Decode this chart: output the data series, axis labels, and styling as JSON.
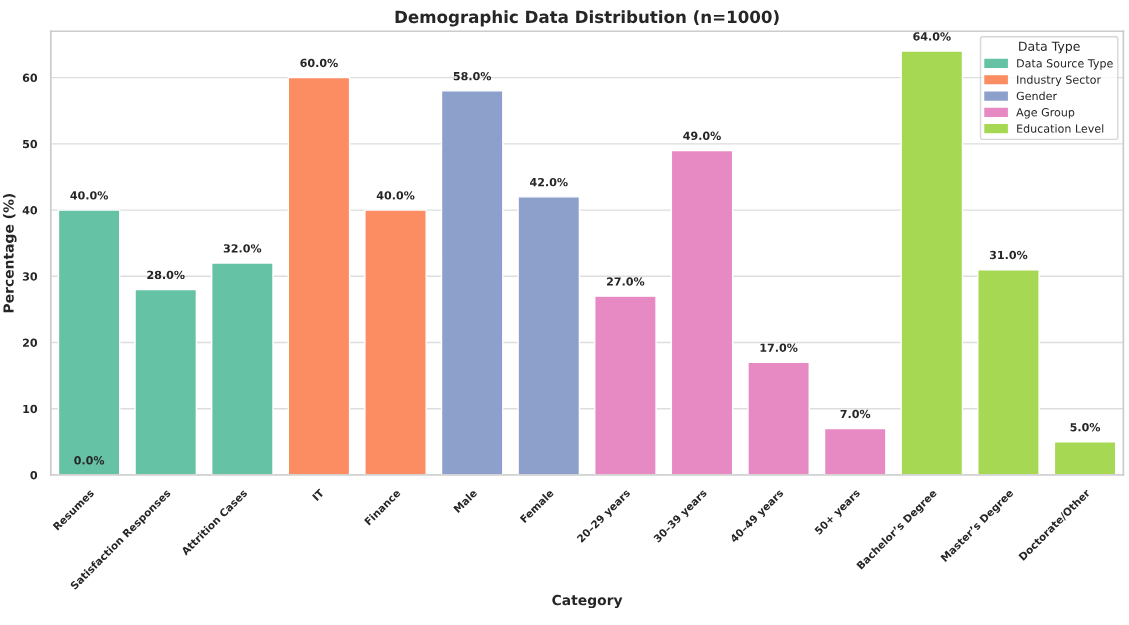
{
  "chart_data": {
    "type": "bar",
    "title": "Demographic Data Distribution (n=1000)",
    "xlabel": "Category",
    "ylabel": "Percentage (%)",
    "legend_title": "Data Type",
    "categories": [
      "Resumes",
      "Satisfaction Responses",
      "Attrition Cases",
      "IT",
      "Finance",
      "Male",
      "Female",
      "20–29 years",
      "30–39 years",
      "40–49 years",
      "50+ years",
      "Bachelor’s Degree",
      "Master’s Degree",
      "Doctorate/Other"
    ],
    "series": [
      {
        "name": "Data Source Type",
        "color": "#66c2a5",
        "values": [
          40,
          28,
          32,
          null,
          null,
          null,
          null,
          null,
          null,
          null,
          null,
          null,
          null,
          null
        ],
        "value_labels": [
          "40.0%",
          "28.0%",
          "32.0%",
          null,
          null,
          null,
          null,
          null,
          null,
          null,
          null,
          null,
          null,
          null
        ]
      },
      {
        "name": "Industry Sector",
        "color": "#fc8d62",
        "values": [
          null,
          null,
          null,
          60,
          40,
          null,
          null,
          null,
          null,
          null,
          null,
          null,
          null,
          null
        ],
        "value_labels": [
          null,
          null,
          null,
          "60.0%",
          "40.0%",
          null,
          null,
          null,
          null,
          null,
          null,
          null,
          null,
          null
        ]
      },
      {
        "name": "Gender",
        "color": "#8da0cb",
        "values": [
          null,
          null,
          null,
          null,
          null,
          58,
          42,
          null,
          null,
          null,
          null,
          null,
          null,
          null
        ],
        "value_labels": [
          null,
          null,
          null,
          null,
          null,
          "58.0%",
          "42.0%",
          null,
          null,
          null,
          null,
          null,
          null,
          null
        ]
      },
      {
        "name": "Age Group",
        "color": "#e78ac3",
        "values": [
          null,
          null,
          null,
          null,
          null,
          null,
          null,
          27,
          49,
          17,
          7,
          null,
          null,
          null
        ],
        "value_labels": [
          null,
          null,
          null,
          null,
          null,
          null,
          null,
          "27.0%",
          "49.0%",
          "17.0%",
          "7.0%",
          null,
          null,
          null
        ]
      },
      {
        "name": "Education Level",
        "color": "#a6d854",
        "values": [
          null,
          null,
          null,
          null,
          null,
          null,
          null,
          null,
          null,
          null,
          null,
          64,
          31,
          5
        ],
        "value_labels": [
          null,
          null,
          null,
          null,
          null,
          null,
          null,
          null,
          null,
          null,
          null,
          "64.0%",
          "31.0%",
          "5.0%"
        ]
      }
    ],
    "annotations": [
      {
        "text": "0.0%",
        "x": "Resumes",
        "y": 0
      }
    ],
    "ylim": [
      0,
      67
    ],
    "yticks": [
      0,
      10,
      20,
      30,
      40,
      50,
      60
    ],
    "grid": "y",
    "legend": "top right"
  }
}
